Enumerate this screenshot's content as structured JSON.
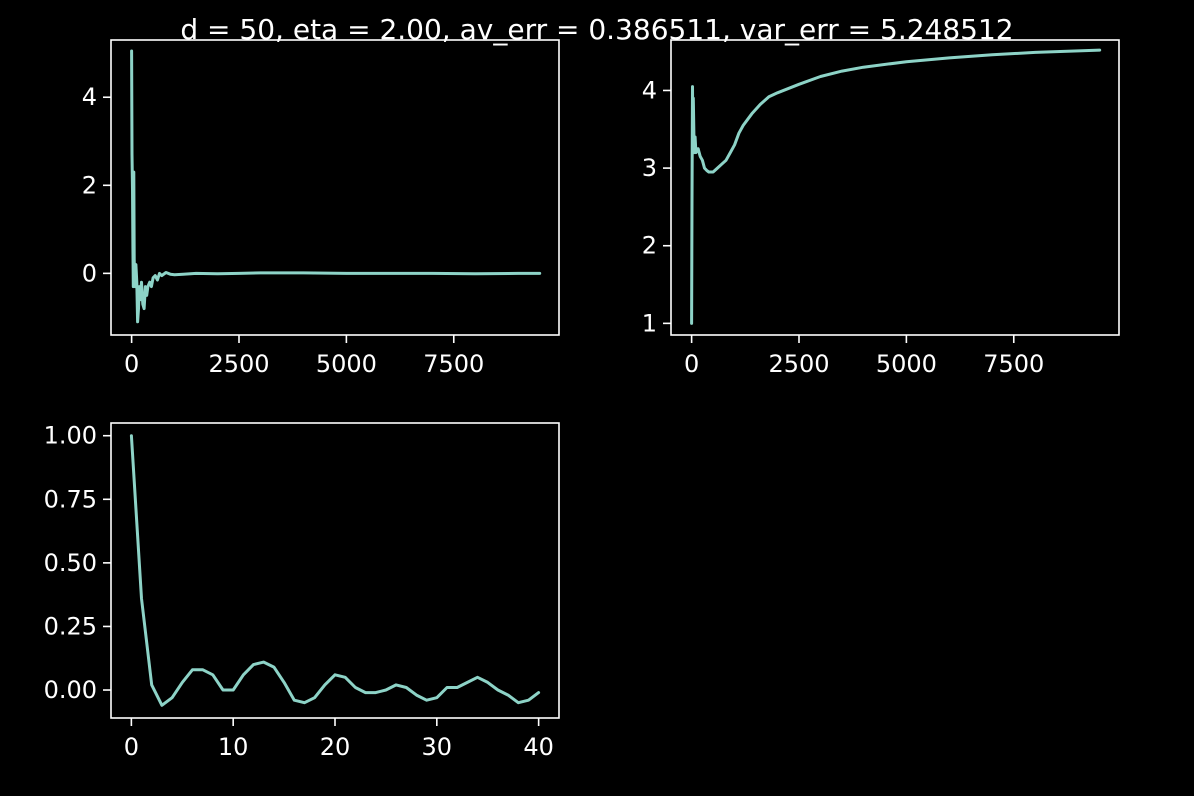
{
  "figure": {
    "title": "d = 50, eta = 2.00, av_err = 0.386511, var_err = 5.248512",
    "background": "#000000",
    "foreground": "#ffffff",
    "line_color": "#8dd3c7"
  },
  "chart_data": [
    {
      "type": "line",
      "title": "",
      "xlabel": "",
      "ylabel": "",
      "xlim": [
        -480,
        9950
      ],
      "ylim": [
        -1.4,
        5.3
      ],
      "xticks": [
        0,
        2500,
        5000,
        7500
      ],
      "xtick_labels": [
        "0",
        "2500",
        "5000",
        "7500"
      ],
      "yticks": [
        0,
        2,
        4
      ],
      "ytick_labels": [
        "0",
        "2",
        "4"
      ],
      "grid": false,
      "series": [
        {
          "x": [
            0,
            10,
            20,
            30,
            40,
            50,
            60,
            80,
            100,
            120,
            140,
            160,
            180,
            200,
            230,
            260,
            290,
            320,
            350,
            380,
            420,
            460,
            500,
            550,
            600,
            650,
            700,
            800,
            900,
            1000,
            1200,
            1500,
            2000,
            2500,
            3000,
            4000,
            5000,
            6000,
            7000,
            8000,
            9000,
            9500
          ],
          "y": [
            5.05,
            2.7,
            1.9,
            0.6,
            -0.3,
            2.3,
            0.3,
            -0.3,
            0.2,
            -0.2,
            -1.1,
            -0.8,
            -0.3,
            -0.6,
            -0.2,
            -0.7,
            -0.8,
            -0.3,
            -0.5,
            -0.3,
            -0.2,
            -0.3,
            -0.1,
            -0.05,
            -0.15,
            0.0,
            -0.05,
            0.02,
            -0.02,
            -0.03,
            -0.02,
            0.0,
            -0.01,
            0.0,
            0.01,
            0.01,
            0.0,
            0.0,
            0.0,
            -0.01,
            0.0,
            0.0
          ]
        }
      ]
    },
    {
      "type": "line",
      "title": "",
      "xlabel": "",
      "ylabel": "",
      "xlim": [
        -480,
        9950
      ],
      "ylim": [
        0.85,
        4.65
      ],
      "xticks": [
        0,
        2500,
        5000,
        7500
      ],
      "xtick_labels": [
        "0",
        "2500",
        "5000",
        "7500"
      ],
      "yticks": [
        1,
        2,
        3,
        4
      ],
      "ytick_labels": [
        "1",
        "2",
        "3",
        "4"
      ],
      "grid": false,
      "series": [
        {
          "x": [
            0,
            10,
            20,
            30,
            40,
            60,
            80,
            100,
            150,
            200,
            250,
            300,
            350,
            400,
            500,
            600,
            700,
            800,
            900,
            1000,
            1100,
            1200,
            1400,
            1600,
            1800,
            2000,
            2500,
            3000,
            3500,
            4000,
            5000,
            6000,
            7000,
            8000,
            9000,
            9500
          ],
          "y": [
            1.0,
            2.6,
            4.05,
            3.4,
            3.9,
            3.2,
            3.4,
            3.2,
            3.25,
            3.15,
            3.1,
            3.0,
            2.97,
            2.95,
            2.95,
            3.0,
            3.05,
            3.1,
            3.2,
            3.3,
            3.45,
            3.55,
            3.7,
            3.82,
            3.92,
            3.97,
            4.08,
            4.18,
            4.25,
            4.3,
            4.37,
            4.42,
            4.46,
            4.49,
            4.51,
            4.52
          ]
        }
      ]
    },
    {
      "type": "line",
      "title": "",
      "xlabel": "",
      "ylabel": "",
      "xlim": [
        -2,
        42
      ],
      "ylim": [
        -0.11,
        1.05
      ],
      "xticks": [
        0,
        10,
        20,
        30,
        40
      ],
      "xtick_labels": [
        "0",
        "10",
        "20",
        "30",
        "40"
      ],
      "yticks": [
        0.0,
        0.25,
        0.5,
        0.75,
        1.0
      ],
      "ytick_labels": [
        "0.00",
        "0.25",
        "0.50",
        "0.75",
        "1.00"
      ],
      "grid": false,
      "series": [
        {
          "x": [
            0,
            1,
            2,
            3,
            4,
            5,
            6,
            7,
            8,
            9,
            10,
            11,
            12,
            13,
            14,
            15,
            16,
            17,
            18,
            19,
            20,
            21,
            22,
            23,
            24,
            25,
            26,
            27,
            28,
            29,
            30,
            31,
            32,
            33,
            34,
            35,
            36,
            37,
            38,
            39,
            40
          ],
          "y": [
            1.0,
            0.36,
            0.02,
            -0.06,
            -0.03,
            0.03,
            0.08,
            0.08,
            0.06,
            0.0,
            0.0,
            0.06,
            0.1,
            0.11,
            0.09,
            0.03,
            -0.04,
            -0.05,
            -0.03,
            0.02,
            0.06,
            0.05,
            0.01,
            -0.01,
            -0.01,
            0.0,
            0.02,
            0.01,
            -0.02,
            -0.04,
            -0.03,
            0.01,
            0.01,
            0.03,
            0.05,
            0.03,
            0.0,
            -0.02,
            -0.05,
            -0.04,
            -0.01
          ]
        }
      ]
    }
  ]
}
